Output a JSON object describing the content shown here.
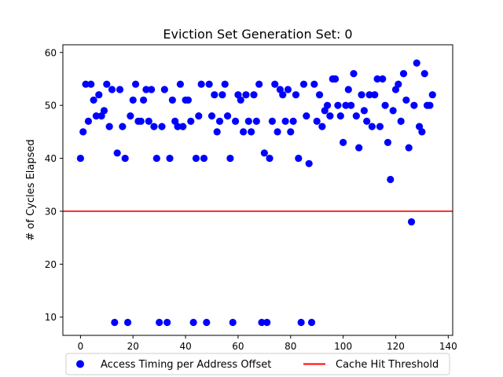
{
  "chart_data": {
    "type": "scatter",
    "title": "Eviction Set Generation Set: 0",
    "xlabel": "",
    "ylabel": "# of Cycles Elapsed",
    "xlim": [
      -6.7,
      141.7
    ],
    "ylim": [
      6.55,
      61.45
    ],
    "xticks": [
      0,
      20,
      40,
      60,
      80,
      100,
      120,
      140
    ],
    "yticks": [
      10,
      20,
      30,
      40,
      50,
      60
    ],
    "grid": false,
    "legend_placement": "bottom-center, outside plot",
    "colors": {
      "points": "#0000ff",
      "threshold": "#ff0000"
    },
    "series": [
      {
        "name": "Access Timing per Address Offset",
        "marker": "circle",
        "x": [
          0,
          1,
          2,
          3,
          4,
          5,
          6,
          7,
          8,
          9,
          10,
          11,
          12,
          13,
          14,
          15,
          16,
          17,
          18,
          19,
          20,
          21,
          22,
          23,
          24,
          25,
          26,
          27,
          28,
          29,
          30,
          31,
          32,
          33,
          34,
          35,
          36,
          37,
          38,
          39,
          40,
          41,
          42,
          43,
          44,
          45,
          46,
          47,
          48,
          49,
          50,
          51,
          52,
          53,
          54,
          55,
          56,
          57,
          58,
          59,
          60,
          61,
          62,
          63,
          64,
          65,
          66,
          67,
          68,
          69,
          70,
          71,
          72,
          73,
          74,
          75,
          76,
          77,
          78,
          79,
          80,
          81,
          82,
          83,
          84,
          85,
          86,
          87,
          88,
          89,
          90,
          91,
          92,
          93,
          94,
          95,
          96,
          97,
          98,
          99,
          100,
          101,
          102,
          103,
          104,
          105,
          106,
          107,
          108,
          109,
          110,
          111,
          112,
          113,
          114,
          115,
          116,
          117,
          118,
          119,
          120,
          121,
          122,
          123,
          124,
          125,
          126,
          127,
          128,
          129,
          130,
          131,
          132,
          133,
          134
        ],
        "y": [
          40,
          45,
          54,
          47,
          54,
          51,
          48,
          52,
          48,
          49,
          54,
          46,
          53,
          9,
          41,
          53,
          46,
          40,
          9,
          48,
          51,
          54,
          47,
          47,
          51,
          53,
          47,
          53,
          46,
          40,
          9,
          46,
          53,
          9,
          40,
          51,
          47,
          46,
          54,
          46,
          51,
          51,
          47,
          9,
          40,
          48,
          54,
          40,
          9,
          54,
          48,
          52,
          45,
          47,
          52,
          54,
          48,
          40,
          9,
          47,
          52,
          51,
          45,
          52,
          47,
          45,
          52,
          47,
          54,
          9,
          41,
          9,
          40,
          47,
          54,
          45,
          53,
          52,
          47,
          53,
          45,
          47,
          52,
          40,
          9,
          54,
          48,
          39,
          9,
          54,
          47,
          52,
          46,
          49,
          50,
          48,
          55,
          55,
          50,
          48,
          43,
          50,
          53,
          50,
          56,
          48,
          42,
          52,
          49,
          47,
          52,
          46,
          52,
          55,
          46,
          55,
          50,
          43,
          36,
          49,
          53,
          54,
          47,
          56,
          51,
          42,
          28,
          50,
          58,
          46,
          45,
          56,
          50,
          50,
          52
        ]
      }
    ],
    "threshold": {
      "name": "Cache Hit Threshold",
      "y": 30
    }
  }
}
